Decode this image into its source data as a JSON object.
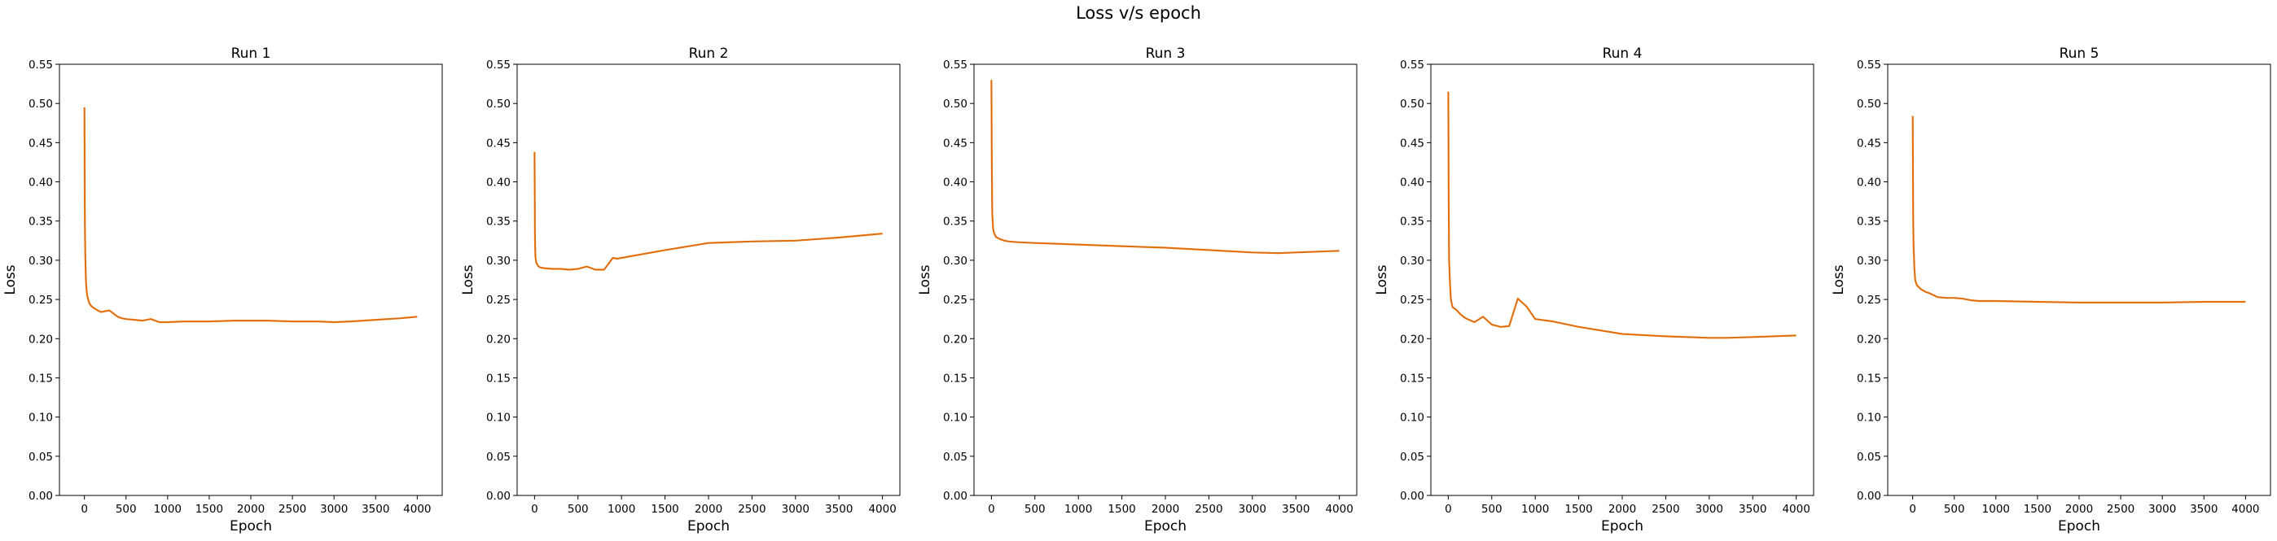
{
  "figure": {
    "title": "Loss v/s epoch"
  },
  "chart_data": [
    {
      "type": "line",
      "title": "Run 1",
      "xlabel": "Epoch",
      "ylabel": "Loss",
      "xlim": [
        -300,
        4300
      ],
      "ylim": [
        0,
        0.55
      ],
      "xticks": [
        0,
        500,
        1000,
        1500,
        2000,
        2500,
        3000,
        3500,
        4000
      ],
      "yticks": [
        "0.00",
        "0.05",
        "0.10",
        "0.15",
        "0.20",
        "0.25",
        "0.30",
        "0.35",
        "0.40",
        "0.45",
        "0.50",
        "0.55"
      ],
      "series": [
        {
          "color": "#ff7f0e",
          "x": [
            0,
            5,
            10,
            15,
            20,
            30,
            40,
            50,
            60,
            80,
            100,
            130,
            160,
            200,
            250,
            300,
            350,
            400,
            450,
            500,
            600,
            700,
            750,
            800,
            850,
            900,
            1000,
            1200,
            1500,
            1800,
            2000,
            2200,
            2500,
            2800,
            3000,
            3200,
            3500,
            3800,
            4000
          ],
          "y": [
            0.495,
            0.35,
            0.31,
            0.285,
            0.27,
            0.258,
            0.252,
            0.248,
            0.245,
            0.242,
            0.24,
            0.238,
            0.236,
            0.234,
            0.235,
            0.236,
            0.232,
            0.228,
            0.226,
            0.225,
            0.224,
            0.223,
            0.224,
            0.225,
            0.223,
            0.221,
            0.221,
            0.222,
            0.222,
            0.223,
            0.223,
            0.223,
            0.222,
            0.222,
            0.221,
            0.222,
            0.224,
            0.226,
            0.228
          ]
        },
        {
          "color": "#b05a1a",
          "x": [
            0,
            5,
            10,
            15,
            20,
            30,
            40,
            50,
            60,
            80,
            100,
            130,
            160,
            200,
            250,
            300,
            350,
            400,
            450,
            500,
            600,
            700,
            750,
            800,
            850,
            900,
            1000,
            1200,
            1500,
            1800,
            2000,
            2200,
            2500,
            2800,
            3000,
            3200,
            3500,
            3800,
            4000
          ],
          "y": [
            0.495,
            0.35,
            0.31,
            0.285,
            0.27,
            0.258,
            0.252,
            0.248,
            0.245,
            0.242,
            0.24,
            0.238,
            0.236,
            0.234,
            0.235,
            0.236,
            0.232,
            0.228,
            0.226,
            0.225,
            0.224,
            0.223,
            0.224,
            0.225,
            0.223,
            0.221,
            0.221,
            0.222,
            0.222,
            0.223,
            0.223,
            0.223,
            0.222,
            0.222,
            0.221,
            0.222,
            0.224,
            0.226,
            0.228
          ]
        }
      ]
    },
    {
      "type": "line",
      "title": "Run 2",
      "xlabel": "Epoch",
      "ylabel": "Loss",
      "xlim": [
        -200,
        4200
      ],
      "ylim": [
        0,
        0.55
      ],
      "xticks": [
        0,
        500,
        1000,
        1500,
        2000,
        2500,
        3000,
        3500,
        4000
      ],
      "yticks": [
        "0.00",
        "0.05",
        "0.10",
        "0.15",
        "0.20",
        "0.25",
        "0.30",
        "0.35",
        "0.40",
        "0.45",
        "0.50",
        "0.55"
      ],
      "series": [
        {
          "color": "#ff7f0e",
          "x": [
            0,
            5,
            10,
            20,
            40,
            60,
            100,
            200,
            300,
            400,
            500,
            600,
            650,
            700,
            800,
            900,
            950,
            1000,
            1500,
            2000,
            2500,
            3000,
            3500,
            4000
          ],
          "y": [
            0.438,
            0.33,
            0.305,
            0.297,
            0.293,
            0.291,
            0.29,
            0.289,
            0.289,
            0.288,
            0.289,
            0.292,
            0.29,
            0.288,
            0.288,
            0.303,
            0.302,
            0.303,
            0.313,
            0.322,
            0.324,
            0.325,
            0.329,
            0.334
          ]
        },
        {
          "color": "#b05a1a",
          "x": [
            0,
            5,
            10,
            20,
            40,
            60,
            100,
            200,
            300,
            400,
            500,
            600,
            650,
            700,
            800,
            900,
            950,
            1000,
            1500,
            2000,
            2500,
            3000,
            3500,
            4000
          ],
          "y": [
            0.438,
            0.33,
            0.305,
            0.297,
            0.293,
            0.291,
            0.29,
            0.289,
            0.289,
            0.288,
            0.289,
            0.292,
            0.29,
            0.288,
            0.288,
            0.303,
            0.302,
            0.303,
            0.313,
            0.322,
            0.324,
            0.325,
            0.329,
            0.334
          ]
        }
      ]
    },
    {
      "type": "line",
      "title": "Run 3",
      "xlabel": "Epoch",
      "ylabel": "Loss",
      "xlim": [
        -200,
        4200
      ],
      "ylim": [
        0,
        0.55
      ],
      "xticks": [
        0,
        500,
        1000,
        1500,
        2000,
        2500,
        3000,
        3500,
        4000
      ],
      "yticks": [
        "0.00",
        "0.05",
        "0.10",
        "0.15",
        "0.20",
        "0.25",
        "0.30",
        "0.35",
        "0.40",
        "0.45",
        "0.50",
        "0.55"
      ],
      "series": [
        {
          "color": "#ff7f0e",
          "x": [
            0,
            5,
            10,
            20,
            30,
            50,
            80,
            100,
            150,
            200,
            300,
            500,
            1000,
            1500,
            2000,
            2500,
            3000,
            3300,
            3500,
            4000
          ],
          "y": [
            0.53,
            0.42,
            0.36,
            0.34,
            0.335,
            0.33,
            0.328,
            0.327,
            0.325,
            0.324,
            0.323,
            0.322,
            0.32,
            0.318,
            0.316,
            0.313,
            0.31,
            0.309,
            0.31,
            0.312
          ]
        },
        {
          "color": "#b05a1a",
          "x": [
            0,
            5,
            10,
            20,
            30,
            50,
            80,
            100,
            150,
            200,
            300,
            500,
            1000,
            1500,
            2000,
            2500,
            3000,
            3300,
            3500,
            4000
          ],
          "y": [
            0.53,
            0.42,
            0.36,
            0.34,
            0.335,
            0.33,
            0.328,
            0.327,
            0.325,
            0.324,
            0.323,
            0.322,
            0.32,
            0.318,
            0.316,
            0.313,
            0.31,
            0.309,
            0.31,
            0.312
          ]
        }
      ]
    },
    {
      "type": "line",
      "title": "Run 4",
      "xlabel": "Epoch",
      "ylabel": "Loss",
      "xlim": [
        -200,
        4200
      ],
      "ylim": [
        0,
        0.55
      ],
      "xticks": [
        0,
        500,
        1000,
        1500,
        2000,
        2500,
        3000,
        3500,
        4000
      ],
      "yticks": [
        "0.00",
        "0.05",
        "0.10",
        "0.15",
        "0.20",
        "0.25",
        "0.30",
        "0.35",
        "0.40",
        "0.45",
        "0.50",
        "0.55"
      ],
      "series": [
        {
          "color": "#ff7f0e",
          "x": [
            0,
            5,
            10,
            20,
            30,
            50,
            80,
            100,
            150,
            200,
            300,
            400,
            500,
            600,
            700,
            800,
            900,
            1000,
            1200,
            1500,
            2000,
            2500,
            3000,
            3200,
            3500,
            4000
          ],
          "y": [
            0.515,
            0.38,
            0.3,
            0.27,
            0.25,
            0.24,
            0.238,
            0.236,
            0.23,
            0.226,
            0.221,
            0.228,
            0.218,
            0.215,
            0.216,
            0.251,
            0.241,
            0.225,
            0.222,
            0.215,
            0.206,
            0.203,
            0.201,
            0.201,
            0.202,
            0.204
          ]
        },
        {
          "color": "#b05a1a",
          "x": [
            0,
            5,
            10,
            20,
            30,
            50,
            80,
            100,
            150,
            200,
            300,
            400,
            500,
            600,
            700,
            800,
            900,
            1000,
            1200,
            1500,
            2000,
            2500,
            3000,
            3200,
            3500,
            4000
          ],
          "y": [
            0.515,
            0.38,
            0.3,
            0.27,
            0.25,
            0.24,
            0.238,
            0.236,
            0.23,
            0.226,
            0.221,
            0.228,
            0.218,
            0.215,
            0.216,
            0.251,
            0.241,
            0.225,
            0.222,
            0.215,
            0.206,
            0.203,
            0.201,
            0.201,
            0.202,
            0.204
          ]
        }
      ]
    },
    {
      "type": "line",
      "title": "Run 5",
      "xlabel": "Epoch",
      "ylabel": "Loss",
      "xlim": [
        -300,
        4300
      ],
      "ylim": [
        0,
        0.55
      ],
      "xticks": [
        0,
        500,
        1000,
        1500,
        2000,
        2500,
        3000,
        3500,
        4000
      ],
      "yticks": [
        "0.00",
        "0.05",
        "0.10",
        "0.15",
        "0.20",
        "0.25",
        "0.30",
        "0.35",
        "0.40",
        "0.45",
        "0.50",
        "0.55"
      ],
      "series": [
        {
          "color": "#ff7f0e",
          "x": [
            0,
            5,
            10,
            20,
            30,
            50,
            80,
            100,
            150,
            200,
            300,
            400,
            500,
            600,
            700,
            800,
            900,
            1000,
            1500,
            2000,
            2500,
            3000,
            3500,
            4000
          ],
          "y": [
            0.484,
            0.36,
            0.32,
            0.29,
            0.275,
            0.268,
            0.265,
            0.263,
            0.26,
            0.258,
            0.253,
            0.252,
            0.252,
            0.251,
            0.249,
            0.248,
            0.248,
            0.248,
            0.247,
            0.246,
            0.246,
            0.246,
            0.247,
            0.247
          ]
        },
        {
          "color": "#b05a1a",
          "x": [
            0,
            5,
            10,
            20,
            30,
            50,
            80,
            100,
            150,
            200,
            300,
            400,
            500,
            600,
            700,
            800,
            900,
            1000,
            1500,
            2000,
            2500,
            3000,
            3500,
            4000
          ],
          "y": [
            0.484,
            0.36,
            0.32,
            0.29,
            0.275,
            0.268,
            0.265,
            0.263,
            0.26,
            0.258,
            0.253,
            0.252,
            0.252,
            0.251,
            0.249,
            0.248,
            0.248,
            0.248,
            0.247,
            0.246,
            0.246,
            0.246,
            0.247,
            0.247
          ]
        }
      ]
    }
  ]
}
